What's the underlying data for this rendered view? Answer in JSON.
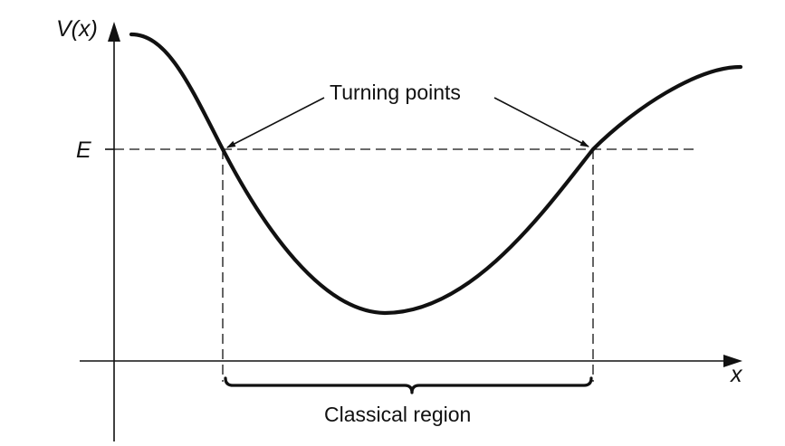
{
  "diagram": {
    "y_axis_label": "V(x)",
    "x_axis_label": "x",
    "energy_label": "E",
    "turning_points_label": "Turning points",
    "region_label": "Classical region"
  },
  "colors": {
    "ink": "#111111",
    "background": "#ffffff"
  }
}
